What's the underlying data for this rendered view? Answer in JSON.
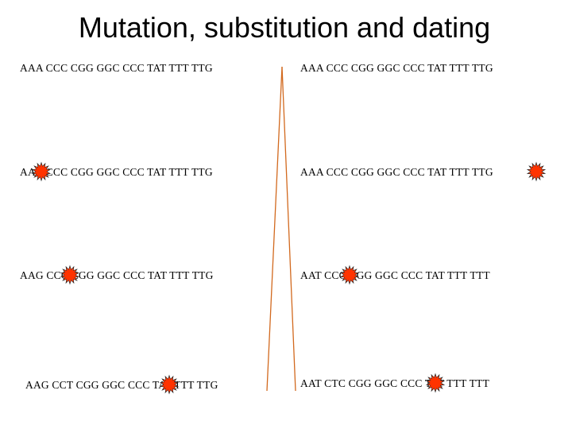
{
  "title": "Mutation, substitution and dating",
  "rows": [
    {
      "left": "AAA CCC CGG GGC CCC TAT TTT TTG",
      "right": "AAA CCC CGG GGC CCC TAT TTT TTG"
    },
    {
      "left": "AAA CCC CGG GGC CCC TAT TTT TTG",
      "right": "AAA CCC CGG GGC CCC TAT TTT TTG"
    },
    {
      "left": "AAG CCC CGG GGC CCC TAT TTT TTG",
      "right": "AAT CCC CGG GGC CCC TAT TTT TTT"
    },
    {
      "left": "AAG CCT CGG GGC CCC TAT TTT TTG",
      "right": "AAT CTC CGG GGC CCC TAT TTT TTT"
    }
  ],
  "mutation_marker_icon": "starburst-icon",
  "colors": {
    "tree_line": "#d2691e",
    "burst_outer": "#2b2b2b",
    "burst_inner": "#ff3300",
    "text": "#000000"
  }
}
